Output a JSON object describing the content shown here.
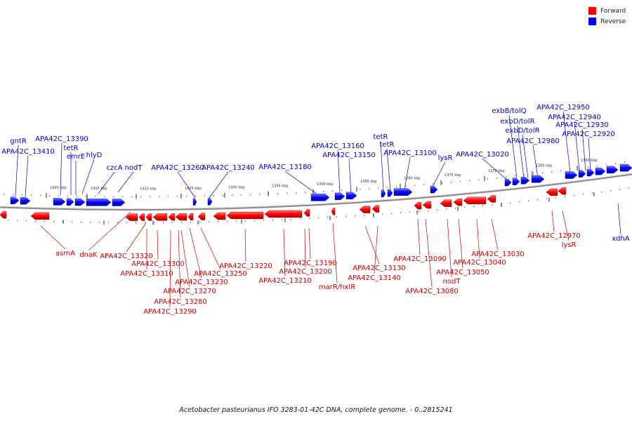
{
  "legend": {
    "forward_label": "Forward",
    "reverse_label": "Reverse",
    "forward_color": "#ff0000",
    "reverse_color": "#0000ff"
  },
  "caption": "Acetobacter pasteurianus IFO 3283-01-42C DNA, complete genome. - 0..2815241",
  "label_colors": {
    "forward": "#cc0000",
    "reverse": "#0000cc"
  },
  "ticks": [
    "1420 kbp",
    "1415 kbp",
    "1410 kbp",
    "1405 kbp",
    "1400 kbp",
    "1395 kbp",
    "1390 kbp",
    "1385 kbp",
    "1380 kbp",
    "1375 kbp",
    "1370 kbp",
    "1365 kbp",
    "1360 kbp"
  ],
  "reverse_genes": [
    "gntR",
    "APA42C_13410",
    "APA42C_13390",
    "tetR",
    "emrE",
    "hlyD",
    "czcA",
    "nodT",
    "APA42C_13260",
    "APA42C_13240",
    "APA42C_13180",
    "APA42C_13160",
    "APA42C_13150",
    "tetR",
    "tetR",
    "APA42C_13100",
    "lysR",
    "APA42C_13020",
    "exbB/tolQ",
    "exbD/tolR",
    "exbD/tolR",
    "APA42C_12980",
    "APA42C_12950",
    "APA42C_12940",
    "APA42C_12930",
    "APA42C_12920",
    "xdhA"
  ],
  "forward_genes": [
    "asmA",
    "dnaK",
    "APA42C_13320",
    "APA42C_13300",
    "APA42C_13310",
    "APA42C_13250",
    "APA42C_13270",
    "APA42C_13280",
    "APA42C_13290",
    "APA42C_13230",
    "APA42C_13220",
    "APA42C_13190",
    "APA42C_13200",
    "APA42C_13210",
    "marR/hxlR",
    "APA42C_13130",
    "APA42C_13140",
    "APA42C_13090",
    "APA42C_13080",
    "nodT",
    "APA42C_13050",
    "APA42C_13040",
    "APA42C_13030",
    "APA42C_12970",
    "lysR"
  ]
}
